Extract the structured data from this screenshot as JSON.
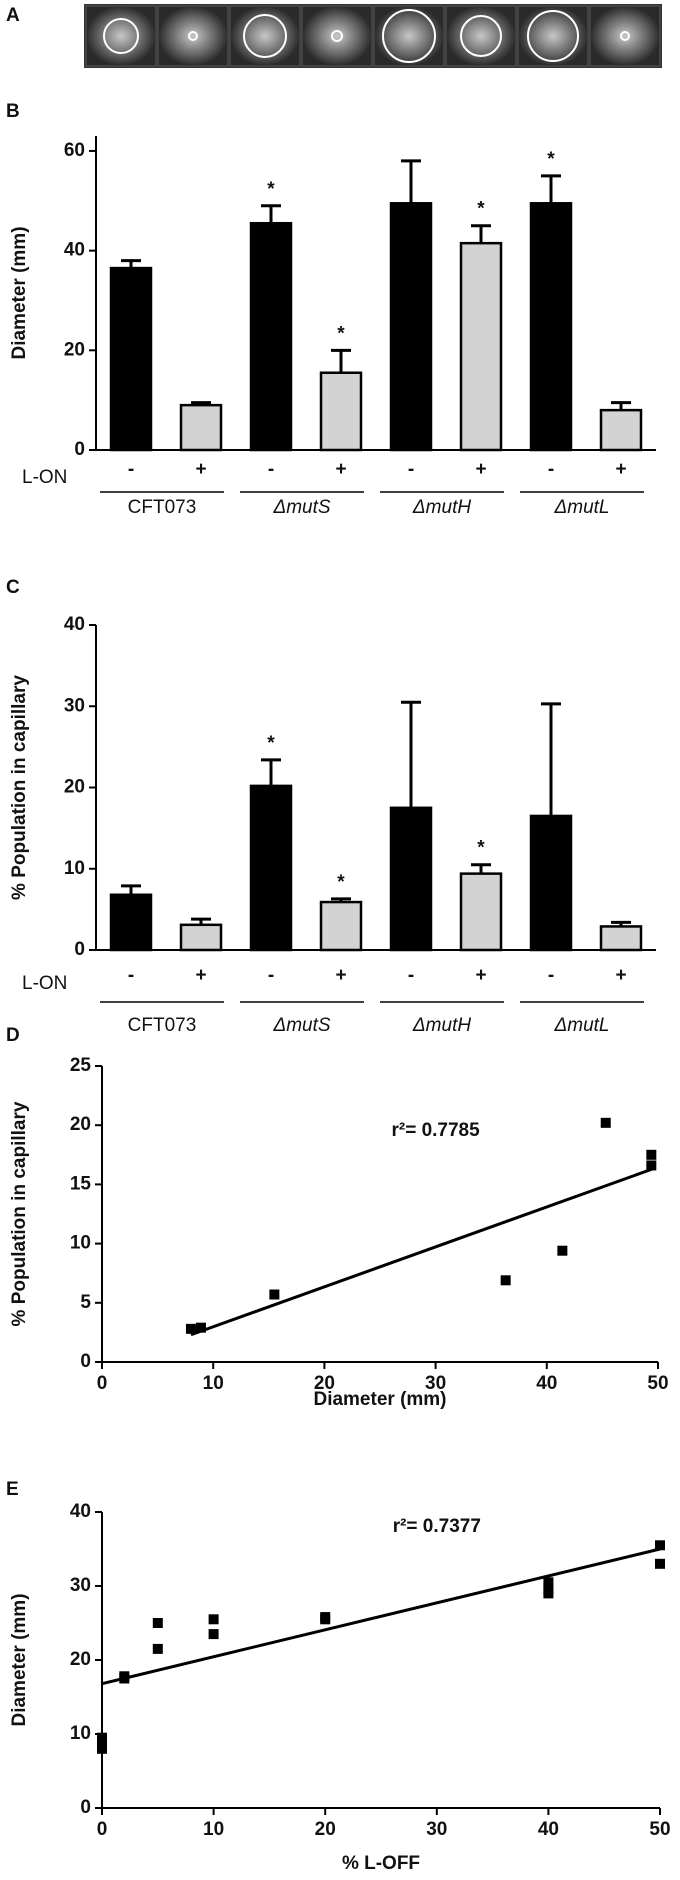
{
  "panel_labels": [
    "A",
    "B",
    "C",
    "D",
    "E"
  ],
  "chart_data": [
    {
      "type": "bar",
      "ylabel": "Diameter (mm)",
      "ylim": [
        0,
        63
      ],
      "yticks": [
        0,
        20,
        40,
        60
      ],
      "categories": [
        "-",
        "+",
        "-",
        "+",
        "-",
        "+",
        "-",
        "+"
      ],
      "values": [
        36.5,
        9,
        45.5,
        15.5,
        49.5,
        41.5,
        49.5,
        8
      ],
      "errors": [
        1.5,
        0.5,
        3.5,
        4.5,
        8.5,
        3.5,
        5.5,
        1.5
      ],
      "colors": [
        "#000000",
        "#d3d3d3",
        "#000000",
        "#d3d3d3",
        "#000000",
        "#d3d3d3",
        "#000000",
        "#d3d3d3"
      ],
      "significant": [
        false,
        false,
        true,
        true,
        false,
        true,
        true,
        false
      ],
      "marker": "*",
      "row_label": "L-ON",
      "groups": [
        "CFT073",
        "ΔmutS",
        "ΔmutH",
        "ΔmutL"
      ]
    },
    {
      "type": "bar",
      "ylabel": "% Population in capillary",
      "ylim": [
        0,
        40
      ],
      "yticks": [
        0,
        10,
        20,
        30,
        40
      ],
      "categories": [
        "-",
        "+",
        "-",
        "+",
        "-",
        "+",
        "-",
        "+"
      ],
      "values": [
        6.8,
        3.1,
        20.2,
        5.9,
        17.5,
        9.4,
        16.5,
        2.9
      ],
      "errors": [
        1.1,
        0.7,
        3.2,
        0.4,
        13,
        1.1,
        13.8,
        0.5
      ],
      "colors": [
        "#000000",
        "#d3d3d3",
        "#000000",
        "#d3d3d3",
        "#000000",
        "#d3d3d3",
        "#000000",
        "#d3d3d3"
      ],
      "significant": [
        false,
        false,
        true,
        true,
        false,
        true,
        false,
        false
      ],
      "marker": "*",
      "row_label": "L-ON",
      "groups": [
        "CFT073",
        "ΔmutS",
        "ΔmutH",
        "ΔmutL"
      ]
    },
    {
      "type": "scatter",
      "xlabel": "Diameter (mm)",
      "ylabel": "% Population in capillary",
      "xlim": [
        0,
        50
      ],
      "xticks": [
        0,
        10,
        20,
        30,
        40,
        50
      ],
      "ylim": [
        0,
        25
      ],
      "yticks": [
        0,
        5,
        10,
        15,
        20,
        25
      ],
      "x": [
        36.3,
        8.9,
        45.3,
        15.5,
        49.4,
        41.4,
        49.4,
        8.0
      ],
      "values": [
        6.9,
        2.9,
        20.2,
        5.7,
        17.5,
        9.4,
        16.6,
        2.8
      ],
      "fit": {
        "x": [
          8,
          49.5
        ],
        "values": [
          2.3,
          16.3
        ]
      },
      "annotation": "r²= 0.7785",
      "color": "#000000"
    },
    {
      "type": "scatter",
      "xlabel": "% L-OFF",
      "ylabel": "Diameter (mm)",
      "xlim": [
        0,
        50
      ],
      "xticks": [
        0,
        10,
        20,
        30,
        40,
        50
      ],
      "ylim": [
        0,
        40
      ],
      "yticks": [
        0,
        10,
        20,
        30,
        40
      ],
      "x": [
        0,
        0,
        0,
        2,
        2,
        5,
        5,
        10,
        10,
        20,
        20,
        40,
        40,
        40,
        50,
        50
      ],
      "values": [
        9.5,
        8.5,
        8,
        17.5,
        17.8,
        25,
        21.5,
        25.5,
        23.5,
        25.8,
        25.5,
        30.5,
        29.5,
        29,
        35.5,
        33
      ],
      "fit": {
        "x": [
          0,
          50
        ],
        "values": [
          16.8,
          35
        ]
      },
      "annotation": "r²= 0.7377",
      "color": "#000000"
    }
  ]
}
